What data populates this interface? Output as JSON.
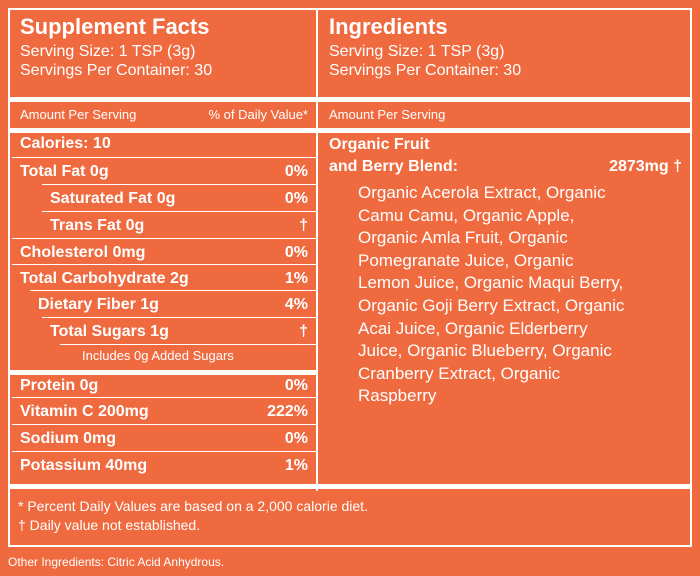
{
  "supplement_facts": {
    "title": "Supplement Facts",
    "serving_size": "Serving Size:  1 TSP (3g)",
    "servings_per_container": "Servings Per Container:  30",
    "amount_header": "Amount Per Serving",
    "dv_header": "% of Daily Value*",
    "calories": "Calories:  10",
    "rows": [
      {
        "label": "Total Fat 0g",
        "dv": "0%"
      },
      {
        "label": "Saturated Fat 0g",
        "dv": "0%"
      },
      {
        "label": "Trans Fat 0g",
        "dv": "†"
      },
      {
        "label": "Cholesterol 0mg",
        "dv": "0%"
      },
      {
        "label": "Total Carbohydrate 2g",
        "dv": "1%"
      },
      {
        "label": "Dietary Fiber 1g",
        "dv": "4%"
      },
      {
        "label": "Total Sugars 1g",
        "dv": "†"
      },
      {
        "label": "Protein 0g",
        "dv": "0%"
      },
      {
        "label": "Vitamin C 200mg",
        "dv": "222%"
      },
      {
        "label": "Sodium 0mg",
        "dv": "0%"
      },
      {
        "label": "Potassium 40mg",
        "dv": "1%"
      }
    ],
    "added_sugars_note": "Includes 0g Added Sugars"
  },
  "ingredients": {
    "title": "Ingredients",
    "serving_size": "Serving Size:  1 TSP (3g)",
    "servings_per_container": "Servings Per Container:  30",
    "amount_header": "Amount Per Serving",
    "blend_name_line1": "Organic Fruit",
    "blend_name_line2": "and Berry Blend:",
    "blend_amount": "2873mg †",
    "blend_contents": "Organic Acerola Extract, Organic Camu Camu, Organic Apple, Organic Amla Fruit, Organic Pomegranate Juice, Organic Lemon Juice, Organic Maqui Berry, Organic Goji Berry Extract, Organic Acai Juice, Organic Elderberry Juice, Organic Blueberry, Organic Cranberry Extract, Organic Raspberry"
  },
  "footnotes": [
    "* Percent Daily Values are based on a 2,000 calorie diet.",
    "† Daily value not established."
  ],
  "other_ingredients": "Other Ingredients:  Citric Acid Anhydrous."
}
